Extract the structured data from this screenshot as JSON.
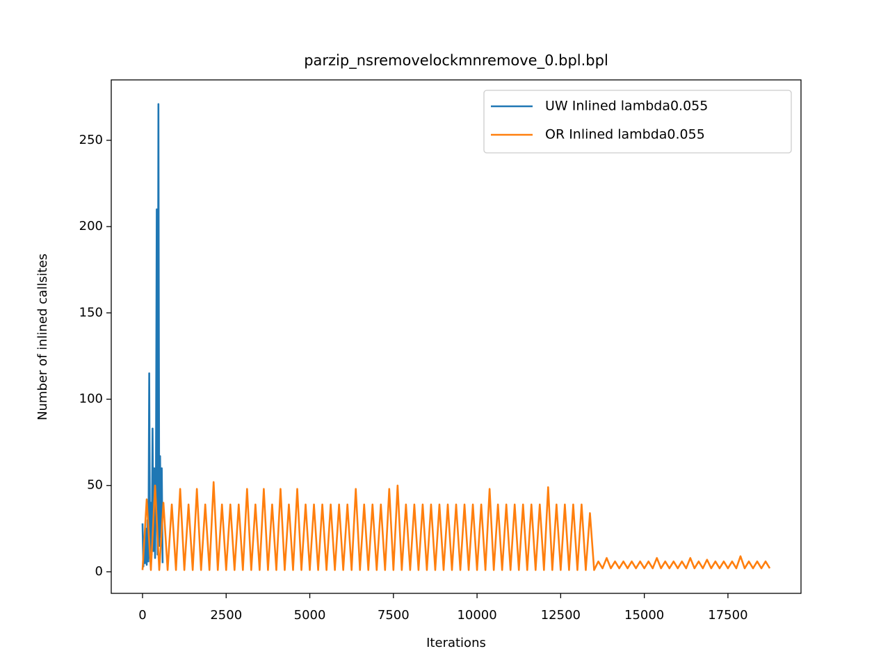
{
  "chart_data": {
    "type": "line",
    "title": "parzip_nsremovelockmnremove_0.bpl.bpl",
    "xlabel": "Iterations",
    "ylabel": "Number of inlined callsites",
    "xlim": [
      -935,
      19684
    ],
    "ylim": [
      -12.5,
      285
    ],
    "xticks": [
      0,
      2500,
      5000,
      7500,
      10000,
      12500,
      15000,
      17500
    ],
    "yticks": [
      0,
      50,
      100,
      150,
      200,
      250
    ],
    "grid": false,
    "legend": "upper-right",
    "series": [
      {
        "name": "UW Inlined lambda0.055",
        "color": "#1f77b4",
        "x": [
          0,
          25,
          50,
          75,
          100,
          125,
          150,
          175,
          200,
          225,
          250,
          275,
          300,
          325,
          350,
          375,
          400,
          425,
          450,
          475,
          500,
          525,
          550,
          575,
          600
        ],
        "values": [
          28,
          3,
          20,
          5,
          25,
          4,
          30,
          6,
          115,
          8,
          40,
          10,
          83,
          12,
          60,
          8,
          45,
          210,
          10,
          271,
          15,
          67,
          20,
          60,
          5
        ]
      },
      {
        "name": "OR Inlined lambda0.055",
        "color": "#ff7f0e",
        "x": [
          0,
          125,
          250,
          375,
          500,
          625,
          750,
          875,
          1000,
          1125,
          1250,
          1375,
          1500,
          1625,
          1750,
          1875,
          2000,
          2125,
          2250,
          2375,
          2500,
          2625,
          2750,
          2875,
          3000,
          3125,
          3250,
          3375,
          3500,
          3625,
          3750,
          3875,
          4000,
          4125,
          4250,
          4375,
          4500,
          4625,
          4750,
          4875,
          5000,
          5125,
          5250,
          5375,
          5500,
          5625,
          5750,
          5875,
          6000,
          6125,
          6250,
          6375,
          6500,
          6625,
          6750,
          6875,
          7000,
          7125,
          7250,
          7375,
          7500,
          7625,
          7750,
          7875,
          8000,
          8125,
          8250,
          8375,
          8500,
          8625,
          8750,
          8875,
          9000,
          9125,
          9250,
          9375,
          9500,
          9625,
          9750,
          9875,
          10000,
          10125,
          10250,
          10375,
          10500,
          10625,
          10750,
          10875,
          11000,
          11125,
          11250,
          11375,
          11500,
          11625,
          11750,
          11875,
          12000,
          12125,
          12250,
          12375,
          12500,
          12625,
          12750,
          12875,
          13000,
          13125,
          13250,
          13375,
          13500,
          13625,
          13750,
          13875,
          14000,
          14125,
          14250,
          14375,
          14500,
          14625,
          14750,
          14875,
          15000,
          15125,
          15250,
          15375,
          15500,
          15625,
          15750,
          15875,
          16000,
          16125,
          16250,
          16375,
          16500,
          16625,
          16750,
          16875,
          17000,
          17125,
          17250,
          17375,
          17500,
          17625,
          17750,
          17875,
          18000,
          18125,
          18250,
          18375,
          18500,
          18625,
          18750
        ],
        "values": [
          1,
          42,
          1,
          50,
          1,
          40,
          1,
          39,
          1,
          48,
          1,
          39,
          1,
          48,
          1,
          39,
          1,
          52,
          1,
          39,
          1,
          39,
          1,
          39,
          1,
          48,
          1,
          39,
          1,
          48,
          1,
          39,
          1,
          48,
          1,
          39,
          1,
          48,
          1,
          39,
          1,
          39,
          1,
          39,
          1,
          39,
          1,
          39,
          1,
          39,
          1,
          48,
          1,
          39,
          1,
          39,
          1,
          39,
          1,
          48,
          1,
          50,
          1,
          39,
          1,
          39,
          1,
          39,
          1,
          39,
          1,
          39,
          1,
          39,
          1,
          39,
          1,
          39,
          1,
          39,
          1,
          39,
          1,
          48,
          1,
          39,
          1,
          39,
          1,
          39,
          1,
          39,
          1,
          39,
          1,
          39,
          1,
          49,
          1,
          39,
          1,
          39,
          1,
          39,
          1,
          39,
          1,
          34,
          1,
          6,
          2,
          8,
          2,
          6,
          2,
          6,
          2,
          6,
          2,
          6,
          2,
          6,
          2,
          8,
          2,
          6,
          2,
          6,
          2,
          6,
          2,
          8,
          2,
          6,
          2,
          7,
          2,
          6,
          2,
          6,
          2,
          6,
          2,
          9,
          2,
          6,
          2,
          6,
          2,
          6,
          2
        ]
      }
    ]
  }
}
